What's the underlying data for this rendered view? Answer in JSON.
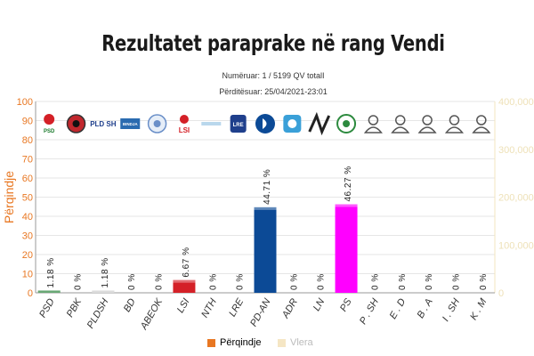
{
  "page": {
    "title": "Rezultatet paraprake në rang Vendi",
    "counted": "Numëruar: 1 / 5199 QV totalI",
    "updated": "Përditësuar: 25/04/2021-23:01"
  },
  "legend": [
    {
      "label": "Përqindje",
      "color": "#e87722"
    },
    {
      "label": "Vlera",
      "color": "#f5e6c4"
    }
  ],
  "chart_data": {
    "type": "bar",
    "categories": [
      "PSD",
      "PBK",
      "PLDSH",
      "BD",
      "ABEOK",
      "LSI",
      "NTH",
      "LRE",
      "PD-AN",
      "ADR",
      "LN",
      "PS",
      "P . SH",
      "E . D",
      "B . A",
      "I . SH",
      "K . M"
    ],
    "values": [
      1.18,
      0,
      1.18,
      0,
      0,
      6.67,
      0,
      0,
      44.71,
      0,
      0,
      46.27,
      0,
      0,
      0,
      0,
      0
    ],
    "data_labels": [
      "1.18 %",
      "0 %",
      "1.18 %",
      "0 %",
      "0 %",
      "6.67 %",
      "0 %",
      "0 %",
      "44.71 %",
      "0 %",
      "0 %",
      "46.27 %",
      "0 %",
      "0 %",
      "0 %",
      "0 %",
      "0 %"
    ],
    "colors": [
      "#1a7a2c",
      "#444444",
      "#c8c8c8",
      "#2a6bb0",
      "#2a6bb0",
      "#d42027",
      "#999999",
      "#1f3f8c",
      "#0c4a96",
      "#3aa0d8",
      "#222222",
      "#ff00ff",
      "#999999",
      "#999999",
      "#999999",
      "#999999",
      "#999999"
    ],
    "ylabel": "Përqindje",
    "ylim": [
      0,
      100
    ],
    "yticks": [
      "0",
      "10",
      "20",
      "30",
      "40",
      "50",
      "60",
      "70",
      "80",
      "90",
      "100"
    ],
    "y2lim": [
      0,
      400000
    ],
    "y2ticks": [
      "0",
      "100,000",
      "200,000",
      "300,000",
      "400,000"
    ],
    "grid": true,
    "legend_position": "bottom",
    "logo_texts": [
      "PSD",
      "PLD SH",
      "BINDJA",
      "LSI",
      "LRE"
    ],
    "logo_icons": [
      "psd-logo-icon",
      "pbk-logo-icon",
      "pldsh-logo-icon",
      "bd-logo-icon",
      "abeok-logo-icon",
      "lsi-logo-icon",
      "nth-logo-icon",
      "lre-logo-icon",
      "pd-an-logo-icon",
      "adr-logo-icon",
      "ln-logo-icon",
      "ps-logo-icon",
      "person-icon",
      "person-icon",
      "person-icon",
      "person-icon",
      "person-icon"
    ]
  }
}
